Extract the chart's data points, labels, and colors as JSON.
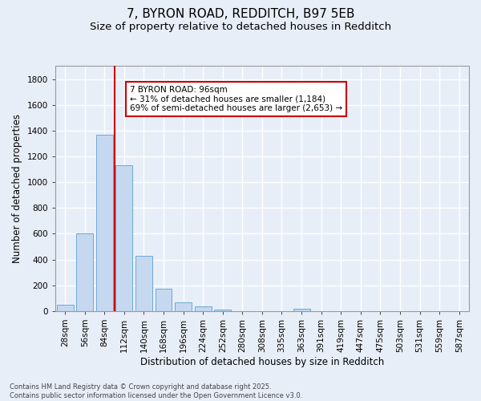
{
  "title1": "7, BYRON ROAD, REDDITCH, B97 5EB",
  "title2": "Size of property relative to detached houses in Redditch",
  "xlabel": "Distribution of detached houses by size in Redditch",
  "ylabel": "Number of detached properties",
  "categories": [
    "28sqm",
    "56sqm",
    "84sqm",
    "112sqm",
    "140sqm",
    "168sqm",
    "196sqm",
    "224sqm",
    "252sqm",
    "280sqm",
    "308sqm",
    "335sqm",
    "363sqm",
    "391sqm",
    "419sqm",
    "447sqm",
    "475sqm",
    "503sqm",
    "531sqm",
    "559sqm",
    "587sqm"
  ],
  "values": [
    50,
    605,
    1370,
    1130,
    430,
    170,
    65,
    38,
    10,
    0,
    0,
    0,
    20,
    0,
    0,
    0,
    0,
    0,
    0,
    0,
    0
  ],
  "bar_color": "#c5d8f0",
  "bar_edge_color": "#6aaad4",
  "vline_color": "#cc0000",
  "vline_x_idx": 2.5,
  "annotation_line1": "7 BYRON ROAD: 96sqm",
  "annotation_line2": "← 31% of detached houses are smaller (1,184)",
  "annotation_line3": "69% of semi-detached houses are larger (2,653) →",
  "annotation_box_color": "white",
  "annotation_box_edge_color": "#cc0000",
  "ylim": [
    0,
    1900
  ],
  "yticks": [
    0,
    200,
    400,
    600,
    800,
    1000,
    1200,
    1400,
    1600,
    1800
  ],
  "bg_color": "#e8eef8",
  "grid_color": "#ffffff",
  "footnote": "Contains HM Land Registry data © Crown copyright and database right 2025.\nContains public sector information licensed under the Open Government Licence v3.0.",
  "title_fontsize": 11,
  "subtitle_fontsize": 9.5,
  "label_fontsize": 8.5,
  "tick_fontsize": 7.5,
  "annot_fontsize": 7.5,
  "footnote_fontsize": 6
}
